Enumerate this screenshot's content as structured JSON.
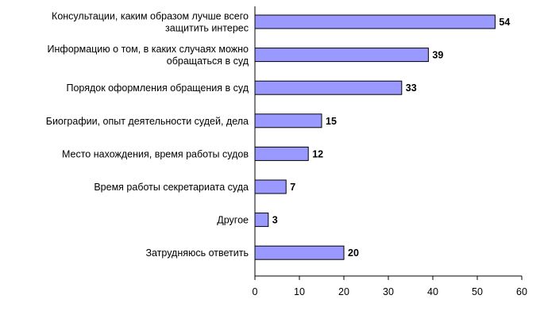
{
  "chart_data": {
    "type": "bar",
    "orientation": "horizontal",
    "categories": [
      "Консультации, каким образом лучше всего защитить интерес",
      "Информацию о том, в каких случаях можно обращаться в суд",
      "Порядок оформления обращения в суд",
      "Биографии, опыт деятельности судей, дела",
      "Место нахождения, время работы судов",
      "Время работы секретариата суда",
      "Другое",
      "Затрудняюсь ответить"
    ],
    "values": [
      54,
      39,
      33,
      15,
      12,
      7,
      3,
      20
    ],
    "value_labels": [
      "54",
      "39",
      "33",
      "15",
      "12",
      "7",
      "3",
      "20"
    ],
    "xlim": [
      0,
      60
    ],
    "x_ticks": [
      0,
      10,
      20,
      30,
      40,
      50,
      60
    ],
    "x_tick_labels": [
      "0",
      "10",
      "20",
      "30",
      "40",
      "50",
      "60"
    ],
    "grid": false,
    "legend": "none",
    "colors": {
      "bar_fill": "#9999ff",
      "bar_stroke": "#000000",
      "axis": "#000000",
      "text": "#000000"
    }
  }
}
